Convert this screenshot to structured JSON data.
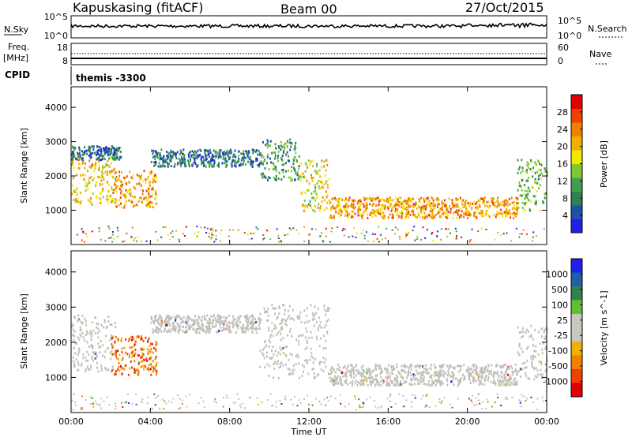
{
  "header": {
    "radar_title": "Kapuskasing (fitACF)",
    "beam_label": "Beam 00",
    "date": "27/Oct/2015"
  },
  "noise_panel": {
    "left_label": "N.Sky",
    "left_ticks": [
      "10^5",
      "10^0"
    ],
    "right_label": "N.Search",
    "right_ticks": [
      "10^5",
      "10^0"
    ]
  },
  "freq_panel": {
    "left_label_line1": "Freq.",
    "left_label_line2": "[MHz]",
    "left_ticks": [
      "18",
      "8"
    ],
    "right_label": "Nave",
    "right_ticks": [
      "60",
      "0"
    ]
  },
  "cpid": {
    "label": "CPID",
    "value": "themis -3300"
  },
  "axes": {
    "x_tick_labels": [
      "00:00",
      "04:00",
      "08:00",
      "12:00",
      "16:00",
      "20:00",
      "00:00"
    ],
    "x_label": "Time UT",
    "y_label": "Slant Range [km]",
    "y_tick_labels": [
      "1000",
      "2000",
      "3000",
      "4000"
    ],
    "y_ticks": [
      1000,
      2000,
      3000,
      4000
    ],
    "y_range": [
      0,
      4600
    ],
    "x_range_hours": [
      0,
      24
    ]
  },
  "colors": {
    "power_scale": [
      "#2020e8",
      "#2050a8",
      "#308050",
      "#40a050",
      "#80c830",
      "#f0e800",
      "#f0b000",
      "#f08000",
      "#f04000",
      "#e00000"
    ],
    "velocity_scale": [
      "#e00000",
      "#f04000",
      "#f08000",
      "#f0b000",
      "#c8c8c0",
      "#c8c8c0",
      "#60c030",
      "#308050",
      "#2060a8",
      "#2020e8"
    ],
    "ground_scatter": "#c0c0b8"
  },
  "chart_data": [
    {
      "type": "heatmap",
      "title": "",
      "xlabel": "",
      "ylabel": "Slant Range [km]",
      "colorbar_label": "Power [dB]",
      "colorbar_ticks": [
        "4",
        "8",
        "12",
        "16",
        "20",
        "24",
        "28"
      ],
      "colorbar_values": [
        4,
        8,
        12,
        16,
        20,
        24,
        28
      ],
      "colorbar_range": [
        0,
        32
      ],
      "regions": [
        {
          "t0": 0.0,
          "t1": 2.2,
          "r0": 1200,
          "r1": 2600,
          "level": 20
        },
        {
          "t0": 0.0,
          "t1": 2.5,
          "r0": 2500,
          "r1": 2900,
          "level": 7
        },
        {
          "t0": 2.0,
          "t1": 4.3,
          "r0": 1100,
          "r1": 2200,
          "level": 22
        },
        {
          "t0": 4.0,
          "t1": 9.5,
          "r0": 2300,
          "r1": 2800,
          "level": 7
        },
        {
          "t0": 9.5,
          "t1": 11.5,
          "r0": 1900,
          "r1": 3100,
          "level": 10
        },
        {
          "t0": 11.5,
          "t1": 13.0,
          "r0": 1000,
          "r1": 2500,
          "level": 18
        },
        {
          "t0": 13.0,
          "t1": 22.5,
          "r0": 800,
          "r1": 1400,
          "level": 22
        },
        {
          "t0": 22.5,
          "t1": 24.0,
          "r0": 900,
          "r1": 2500,
          "level": 12
        }
      ]
    },
    {
      "type": "heatmap",
      "title": "",
      "xlabel": "Time UT",
      "ylabel": "Slant Range [km]",
      "colorbar_label": "Velocity [m s^-1]",
      "colorbar_ticks": [
        "1000",
        "500",
        "100",
        "25",
        "-25",
        "-100",
        "-500",
        "-1000"
      ],
      "colorbar_values": [
        1000,
        500,
        100,
        25,
        -25,
        -100,
        -500,
        -1000
      ],
      "regions": [
        {
          "t0": 0.0,
          "t1": 2.2,
          "r0": 1200,
          "r1": 2800,
          "velocity": 0,
          "ground_scatter": true
        },
        {
          "t0": 2.0,
          "t1": 4.3,
          "r0": 1100,
          "r1": 2200,
          "velocity": -150,
          "ground_scatter": false
        },
        {
          "t0": 4.0,
          "t1": 9.5,
          "r0": 2300,
          "r1": 2800,
          "velocity": 0,
          "ground_scatter": true
        },
        {
          "t0": 9.5,
          "t1": 13.0,
          "r0": 1000,
          "r1": 3100,
          "velocity": 0,
          "ground_scatter": true
        },
        {
          "t0": 13.0,
          "t1": 22.5,
          "r0": 800,
          "r1": 1400,
          "velocity": 0,
          "ground_scatter": true
        },
        {
          "t0": 22.5,
          "t1": 24.0,
          "r0": 900,
          "r1": 2500,
          "velocity": 0,
          "ground_scatter": true
        }
      ]
    }
  ]
}
